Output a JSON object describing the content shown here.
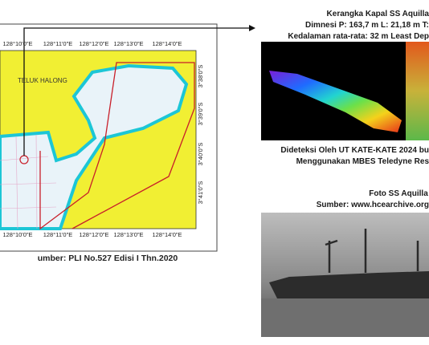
{
  "map": {
    "title": "TELUK HALONG",
    "top_labels": [
      "128°10'0\"E",
      "128°11'0\"E",
      "128°12'0\"E",
      "128°13'0\"E",
      "128°14'0\"E"
    ],
    "bottom_labels": [
      "128°10'0\"E",
      "128°11'0\"E",
      "128°12'0\"E",
      "128°13'0\"E",
      "128°14'0\"E"
    ],
    "right_labels": [
      "3°38'0\"S",
      "3°39'0\"S",
      "3°40'0\"S",
      "3°41'0\"S"
    ],
    "caption": "umber: PLI No.527 Edisi I Thn.2020"
  },
  "sonar": {
    "title": "Kerangka Kapal SS Aquilla",
    "dimension": "Dimnesi P: 163,7 m L: 21,18 m T:",
    "depth": "Kedalaman rata-rata: 32 m Least Dep",
    "detected": "Dideteksi Oleh UT KATE-KATE 2024 bu",
    "method": "Menggunakan MBES Teledyne Res"
  },
  "photo": {
    "title": "Foto SS Aquilla",
    "source": "Sumber: www.hcearchive.org"
  }
}
